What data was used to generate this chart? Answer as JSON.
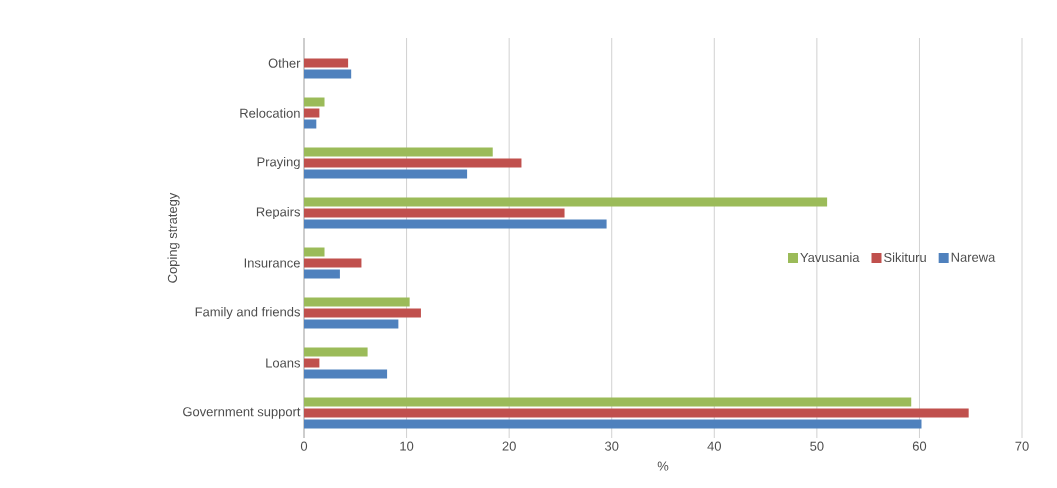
{
  "chart_data": {
    "type": "bar",
    "orientation": "horizontal",
    "xlabel": "%",
    "ylabel": "Coping strategy",
    "categories": [
      "Other",
      "Relocation",
      "Praying",
      "Repairs",
      "Insurance",
      "Family and friends",
      "Loans",
      "Government support"
    ],
    "series": [
      {
        "name": "Yavusania",
        "color": "#9bbb59",
        "values": [
          null,
          2.0,
          18.4,
          51.0,
          2.0,
          10.3,
          6.2,
          59.2
        ]
      },
      {
        "name": "Sikituru",
        "color": "#c0504d",
        "values": [
          4.3,
          1.5,
          21.2,
          25.4,
          5.6,
          11.4,
          1.5,
          64.8
        ]
      },
      {
        "name": "Narewa",
        "color": "#4f81bd",
        "values": [
          4.6,
          1.2,
          15.9,
          29.5,
          3.5,
          9.2,
          8.1,
          60.2
        ]
      }
    ],
    "xlim": [
      0,
      70
    ],
    "xticks": [
      0,
      10,
      20,
      30,
      40,
      50,
      60,
      70
    ],
    "grid": "x",
    "legend": "right"
  }
}
